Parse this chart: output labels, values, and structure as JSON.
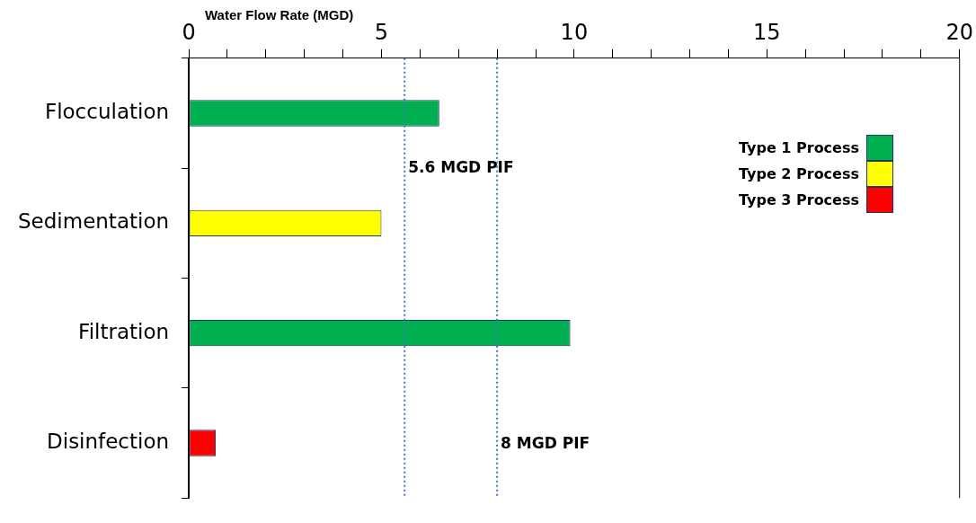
{
  "chart_data": {
    "type": "bar",
    "orientation": "horizontal",
    "stacked": true,
    "xlabel": "Water Flow Rate (MGD)",
    "categories": [
      "Flocculation",
      "Sedimentation",
      "Filtration",
      "Disinfection"
    ],
    "series": [
      {
        "name": "Type 1 Process",
        "color": "#00b050",
        "values": [
          6.5,
          null,
          9.9,
          null
        ]
      },
      {
        "name": "Type 2 Process",
        "color": "#ffff00",
        "values": [
          null,
          5.0,
          null,
          null
        ]
      },
      {
        "name": "Type 3 Process",
        "color": "#ff0000",
        "values": [
          null,
          null,
          null,
          0.7
        ]
      }
    ],
    "xlim": [
      0,
      20
    ],
    "xticks": [
      0,
      {
        "value": 1,
        "label": null
      },
      {
        "value": 2,
        "label": null
      },
      {
        "value": 3,
        "label": null
      },
      {
        "value": 4,
        "label": null
      },
      5,
      {
        "value": 6,
        "label": null
      },
      {
        "value": 7,
        "label": null
      },
      {
        "value": 8,
        "label": null
      },
      {
        "value": 9,
        "label": null
      },
      10,
      {
        "value": 11,
        "label": null
      },
      {
        "value": 12,
        "label": null
      },
      {
        "value": 13,
        "label": null
      },
      {
        "value": 14,
        "label": null
      },
      15,
      {
        "value": 16,
        "label": null
      },
      {
        "value": 17,
        "label": null
      },
      {
        "value": 18,
        "label": null
      },
      {
        "value": 19,
        "label": null
      },
      20
    ],
    "ref_lines": [
      {
        "axis": "x",
        "value": 5.6,
        "label": "5.6 MGD PIF",
        "color": "#4472c4",
        "line_style": "dotted"
      },
      {
        "axis": "x",
        "value": 8,
        "label": "8 MGD PIF",
        "color": "#4472c4",
        "line_style": "dotted"
      }
    ],
    "grid": false,
    "legend": "top right"
  }
}
